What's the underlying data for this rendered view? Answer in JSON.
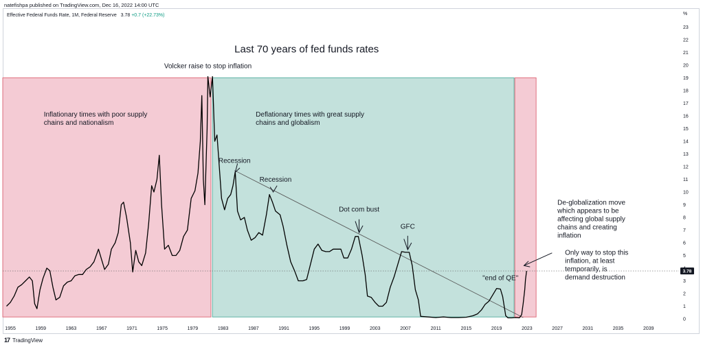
{
  "header": {
    "published_line": "natefishpa published on TradingView.com, Dec 16, 2022 14:00 UTC"
  },
  "legend": {
    "symbol": "Effective Federal Funds Rate, 1M, Federal Reserve",
    "value": "3.78",
    "change": "+0.7 (+22.73%)"
  },
  "footer": {
    "logo": "17",
    "brand": "TradingView"
  },
  "colors": {
    "inflation_zone": "#f2c2cc",
    "deflation_zone": "#b9dcd6",
    "line": "#000000",
    "price_label_bg": "#131722"
  },
  "chart_data": {
    "type": "line",
    "title": "Last 70 years of fed funds rates",
    "y_unit_label": "%",
    "ylim": [
      0,
      24
    ],
    "xlim": [
      1954,
      2043
    ],
    "y_ticks": [
      "0",
      "1",
      "2",
      "3",
      "4",
      "5",
      "6",
      "7",
      "8",
      "9",
      "10",
      "11",
      "12",
      "13",
      "14",
      "15",
      "16",
      "17",
      "18",
      "19",
      "20",
      "21",
      "22",
      "23"
    ],
    "x_ticks": [
      "1955",
      "1959",
      "1963",
      "1967",
      "1971",
      "1975",
      "1979",
      "1983",
      "1987",
      "1991",
      "1995",
      "1999",
      "2003",
      "2007",
      "2011",
      "2015",
      "2019",
      "2023",
      "2027",
      "2031",
      "2035",
      "2039"
    ],
    "last_value_label": "3.78",
    "series": [
      {
        "points": [
          [
            1954.5,
            1.0
          ],
          [
            1955.0,
            1.3
          ],
          [
            1955.5,
            1.8
          ],
          [
            1956.0,
            2.5
          ],
          [
            1956.5,
            2.7
          ],
          [
            1957.0,
            3.0
          ],
          [
            1957.5,
            3.3
          ],
          [
            1957.9,
            3.0
          ],
          [
            1958.2,
            1.2
          ],
          [
            1958.5,
            0.8
          ],
          [
            1958.9,
            2.3
          ],
          [
            1959.3,
            3.2
          ],
          [
            1959.8,
            4.0
          ],
          [
            1960.2,
            3.8
          ],
          [
            1960.6,
            2.5
          ],
          [
            1961.0,
            1.5
          ],
          [
            1961.5,
            1.7
          ],
          [
            1962.0,
            2.6
          ],
          [
            1962.5,
            2.9
          ],
          [
            1963.0,
            3.0
          ],
          [
            1963.5,
            3.4
          ],
          [
            1964.0,
            3.5
          ],
          [
            1964.5,
            3.5
          ],
          [
            1965.0,
            3.9
          ],
          [
            1965.5,
            4.1
          ],
          [
            1966.0,
            4.5
          ],
          [
            1966.6,
            5.5
          ],
          [
            1967.0,
            4.7
          ],
          [
            1967.4,
            3.9
          ],
          [
            1967.9,
            4.3
          ],
          [
            1968.3,
            5.5
          ],
          [
            1968.8,
            6.0
          ],
          [
            1969.2,
            6.8
          ],
          [
            1969.6,
            9.0
          ],
          [
            1969.9,
            9.2
          ],
          [
            1970.3,
            8.0
          ],
          [
            1970.8,
            6.0
          ],
          [
            1971.1,
            3.7
          ],
          [
            1971.5,
            5.4
          ],
          [
            1971.9,
            4.5
          ],
          [
            1972.3,
            4.2
          ],
          [
            1972.8,
            5.2
          ],
          [
            1973.2,
            7.5
          ],
          [
            1973.6,
            10.5
          ],
          [
            1973.9,
            10.0
          ],
          [
            1974.3,
            11.0
          ],
          [
            1974.6,
            12.9
          ],
          [
            1974.9,
            9.0
          ],
          [
            1975.3,
            5.5
          ],
          [
            1975.8,
            5.8
          ],
          [
            1976.3,
            5.0
          ],
          [
            1976.8,
            5.0
          ],
          [
            1977.3,
            5.4
          ],
          [
            1977.8,
            6.5
          ],
          [
            1978.3,
            7.0
          ],
          [
            1978.8,
            9.5
          ],
          [
            1979.3,
            10.1
          ],
          [
            1979.7,
            11.5
          ],
          [
            1980.0,
            14.0
          ],
          [
            1980.2,
            17.6
          ],
          [
            1980.4,
            11.0
          ],
          [
            1980.6,
            9.0
          ],
          [
            1980.9,
            15.0
          ],
          [
            1981.0,
            19.1
          ],
          [
            1981.3,
            17.5
          ],
          [
            1981.6,
            19.1
          ],
          [
            1981.9,
            14.0
          ],
          [
            1982.2,
            14.5
          ],
          [
            1982.5,
            12.0
          ],
          [
            1982.8,
            9.5
          ],
          [
            1983.2,
            8.6
          ],
          [
            1983.6,
            9.5
          ],
          [
            1984.0,
            9.8
          ],
          [
            1984.3,
            10.5
          ],
          [
            1984.6,
            11.6
          ],
          [
            1984.9,
            8.5
          ],
          [
            1985.3,
            7.8
          ],
          [
            1985.8,
            8.0
          ],
          [
            1986.2,
            7.0
          ],
          [
            1986.7,
            6.2
          ],
          [
            1987.2,
            6.4
          ],
          [
            1987.7,
            6.8
          ],
          [
            1988.2,
            6.6
          ],
          [
            1988.7,
            8.2
          ],
          [
            1989.1,
            9.8
          ],
          [
            1989.5,
            9.2
          ],
          [
            1989.9,
            8.5
          ],
          [
            1990.5,
            8.2
          ],
          [
            1990.9,
            7.3
          ],
          [
            1991.4,
            5.8
          ],
          [
            1991.9,
            4.5
          ],
          [
            1992.4,
            3.8
          ],
          [
            1992.9,
            3.0
          ],
          [
            1993.5,
            3.0
          ],
          [
            1994.0,
            3.1
          ],
          [
            1994.5,
            4.3
          ],
          [
            1995.0,
            5.5
          ],
          [
            1995.5,
            5.9
          ],
          [
            1996.0,
            5.4
          ],
          [
            1996.5,
            5.3
          ],
          [
            1997.0,
            5.3
          ],
          [
            1997.5,
            5.5
          ],
          [
            1998.0,
            5.5
          ],
          [
            1998.5,
            5.5
          ],
          [
            1998.9,
            4.8
          ],
          [
            1999.4,
            4.8
          ],
          [
            1999.9,
            5.5
          ],
          [
            2000.4,
            6.5
          ],
          [
            2000.8,
            6.5
          ],
          [
            2001.3,
            5.0
          ],
          [
            2001.7,
            3.5
          ],
          [
            2002.0,
            1.8
          ],
          [
            2002.5,
            1.7
          ],
          [
            2003.0,
            1.3
          ],
          [
            2003.5,
            1.0
          ],
          [
            2004.0,
            1.0
          ],
          [
            2004.5,
            1.3
          ],
          [
            2005.0,
            2.5
          ],
          [
            2005.5,
            3.3
          ],
          [
            2006.0,
            4.3
          ],
          [
            2006.5,
            5.3
          ],
          [
            2007.0,
            5.25
          ],
          [
            2007.5,
            5.25
          ],
          [
            2007.9,
            4.2
          ],
          [
            2008.3,
            2.3
          ],
          [
            2008.7,
            1.5
          ],
          [
            2009.0,
            0.2
          ],
          [
            2010.0,
            0.15
          ],
          [
            2011.0,
            0.1
          ],
          [
            2012.0,
            0.15
          ],
          [
            2013.0,
            0.1
          ],
          [
            2014.0,
            0.1
          ],
          [
            2015.0,
            0.13
          ],
          [
            2015.9,
            0.25
          ],
          [
            2016.5,
            0.4
          ],
          [
            2017.0,
            0.7
          ],
          [
            2017.5,
            1.15
          ],
          [
            2018.0,
            1.4
          ],
          [
            2018.5,
            1.9
          ],
          [
            2019.0,
            2.4
          ],
          [
            2019.5,
            2.35
          ],
          [
            2019.8,
            1.75
          ],
          [
            2020.2,
            0.25
          ],
          [
            2020.5,
            0.08
          ],
          [
            2021.0,
            0.08
          ],
          [
            2021.5,
            0.1
          ],
          [
            2022.0,
            0.08
          ],
          [
            2022.3,
            0.33
          ],
          [
            2022.5,
            1.2
          ],
          [
            2022.7,
            2.3
          ],
          [
            2022.8,
            3.1
          ],
          [
            2022.95,
            3.78
          ]
        ]
      }
    ],
    "shaded_regions": [
      {
        "x0": 1954,
        "x1": 1981.4,
        "color": "#f2c2cc"
      },
      {
        "x0": 1981.6,
        "x1": 2021.3,
        "color": "#b9dcd6"
      },
      {
        "x0": 2021.4,
        "x1": 2024.2,
        "color": "#f2c2cc"
      }
    ],
    "trend_line": {
      "x0": 1984.5,
      "y0": 11.7,
      "x1": 2022.5,
      "y1": 0.1
    },
    "price_line_value": 3.78,
    "annotations": [
      {
        "text": "Last 70 years of fed funds rates",
        "x": 1994,
        "y": 21.0,
        "kind": "title"
      },
      {
        "text": "Volcker raise to stop inflation",
        "x": 1981.0,
        "y": 19.75,
        "kind": "label"
      },
      {
        "lines": [
          "Inflationary times with poor supply",
          "chains and nationalism"
        ],
        "x": 1959.4,
        "y": 15.95,
        "kind": "label"
      },
      {
        "lines": [
          "Deflationary times with great supply",
          "chains and globalism"
        ],
        "x": 1987.3,
        "y": 15.95,
        "kind": "label"
      },
      {
        "text": "Recession",
        "x": 1984.5,
        "y": 12.3,
        "kind": "label"
      },
      {
        "text": "Recession",
        "x": 1989.9,
        "y": 10.8,
        "kind": "label"
      },
      {
        "text": "Dot com bust",
        "x": 2000.9,
        "y": 8.45,
        "kind": "label"
      },
      {
        "text": "GFC",
        "x": 2007.3,
        "y": 7.1,
        "kind": "label"
      },
      {
        "text": "\"end of QE\"",
        "x": 2019.5,
        "y": 3.05,
        "kind": "label"
      },
      {
        "lines": [
          "De-globalization move",
          "which appears to be",
          "affecting global supply",
          "chains and creating",
          "inflation"
        ],
        "x": 2027.0,
        "y": 9.0,
        "kind": "label-left"
      },
      {
        "lines": [
          "Only way to stop this",
          "inflation, at least",
          "temporarily, is",
          "demand destruction"
        ],
        "x": 2028.0,
        "y": 5.05,
        "kind": "label-left"
      }
    ]
  }
}
